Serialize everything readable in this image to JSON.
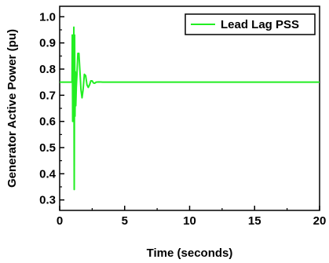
{
  "chart_data": {
    "type": "line",
    "title": "",
    "xlabel": "Time (seconds)",
    "ylabel": "Generator Active Power (pu)",
    "xlim": [
      0,
      20
    ],
    "ylim": [
      0.26,
      1.04
    ],
    "xticks": [
      0,
      5,
      10,
      15,
      20
    ],
    "yticks": [
      0.3,
      0.4,
      0.5,
      0.6,
      0.7,
      0.8,
      0.9,
      1.0
    ],
    "xtick_labels": [
      "0",
      "5",
      "10",
      "15",
      "20"
    ],
    "ytick_labels": [
      "0.3",
      "0.4",
      "0.5",
      "0.6",
      "0.7",
      "0.8",
      "0.9",
      "1.0"
    ],
    "grid": false,
    "legend_position": "top-right",
    "series": [
      {
        "name": "Lead Lag PSS",
        "color": "#22ee22",
        "x": [
          0,
          0.95,
          0.97,
          1.0,
          1.03,
          1.06,
          1.09,
          1.12,
          1.15,
          1.18,
          1.21,
          1.24,
          1.28,
          1.33,
          1.4,
          1.48,
          1.56,
          1.64,
          1.72,
          1.8,
          1.9,
          2.0,
          2.1,
          2.2,
          2.3,
          2.4,
          2.5,
          2.6,
          2.7,
          2.8,
          3.0,
          3.3,
          4.0,
          20
        ],
        "values": [
          0.75,
          0.75,
          0.93,
          0.6,
          0.93,
          0.62,
          0.96,
          0.34,
          0.93,
          0.62,
          0.79,
          0.66,
          0.73,
          0.78,
          0.86,
          0.86,
          0.79,
          0.72,
          0.69,
          0.72,
          0.78,
          0.775,
          0.74,
          0.73,
          0.74,
          0.755,
          0.755,
          0.747,
          0.746,
          0.75,
          0.751,
          0.75,
          0.75,
          0.75
        ]
      }
    ]
  }
}
